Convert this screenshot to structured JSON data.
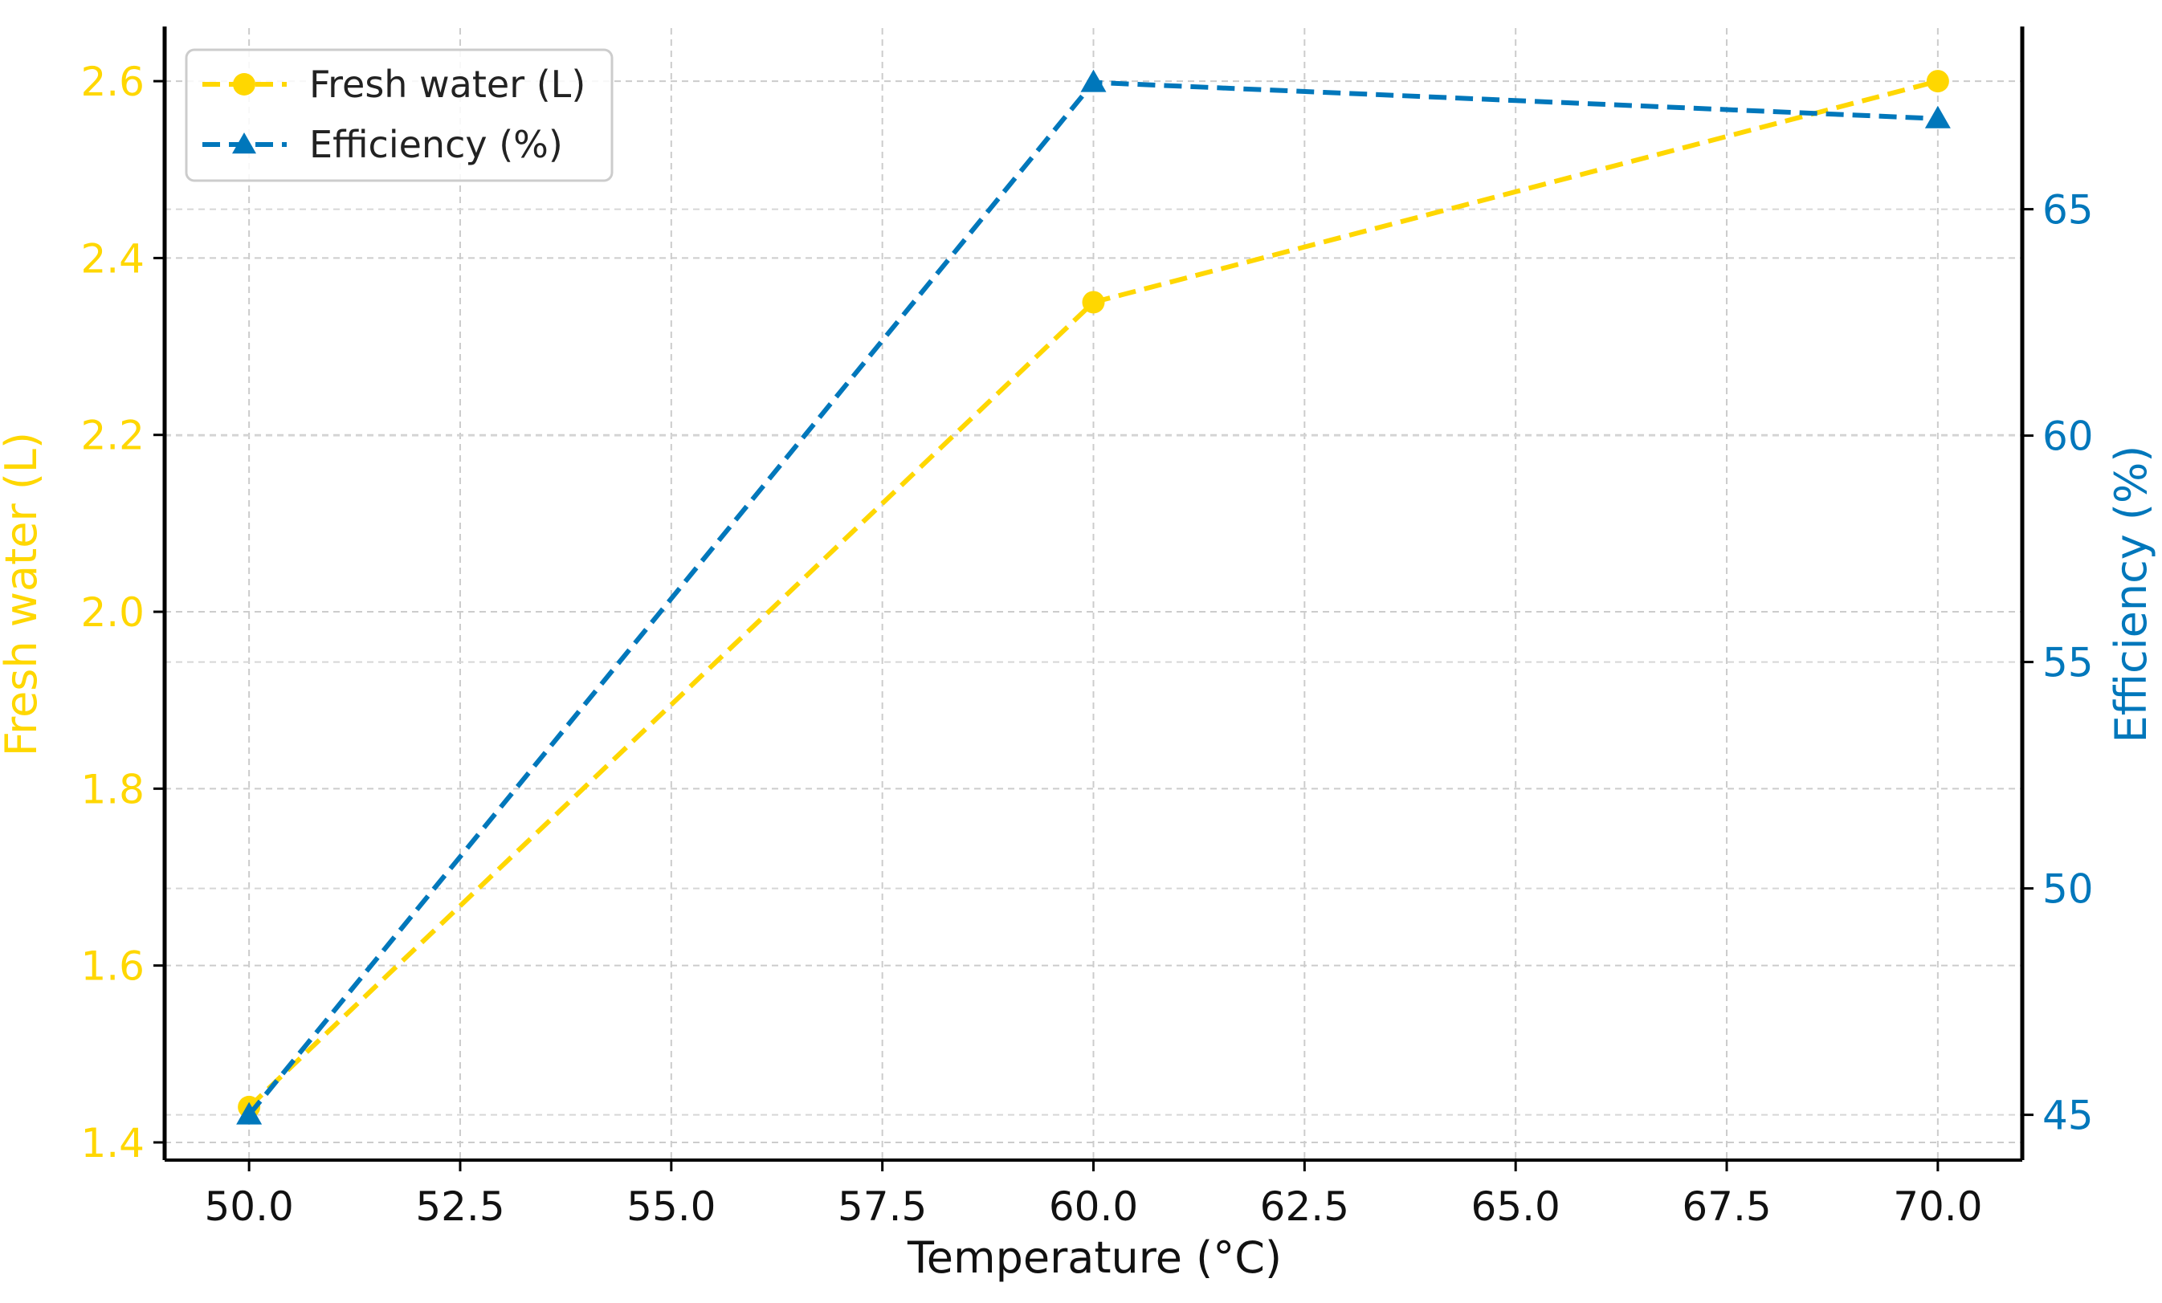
{
  "chart_data": {
    "type": "line",
    "title": "",
    "xlabel": "Temperature (°C)",
    "ylabel_left": "Fresh water (L)",
    "ylabel_right": "Efficiency (%)",
    "x": [
      50.0,
      60.0,
      70.0
    ],
    "xlim": [
      49.0,
      71.0
    ],
    "ylim_left": [
      1.38,
      2.66
    ],
    "ylim_right": [
      44,
      69
    ],
    "xticks": [
      "50.0",
      "52.5",
      "55.0",
      "57.5",
      "60.0",
      "62.5",
      "65.0",
      "67.5",
      "70.0"
    ],
    "yticks_left": [
      "1.4",
      "1.6",
      "1.8",
      "2.0",
      "2.2",
      "2.4",
      "2.6"
    ],
    "yticks_right": [
      "45",
      "50",
      "55",
      "60",
      "65"
    ],
    "grid": true,
    "legend_position": "top-left",
    "series": [
      {
        "name": "Fresh water (L)",
        "axis": "left",
        "marker": "circle",
        "line_style": "dashed",
        "color": "#FFD700",
        "values": [
          1.44,
          2.35,
          2.6
        ]
      },
      {
        "name": "Efficiency (%)",
        "axis": "right",
        "marker": "triangle",
        "line_style": "dashed",
        "color": "#0077BB",
        "values": [
          45,
          67.8,
          67
        ]
      }
    ]
  }
}
